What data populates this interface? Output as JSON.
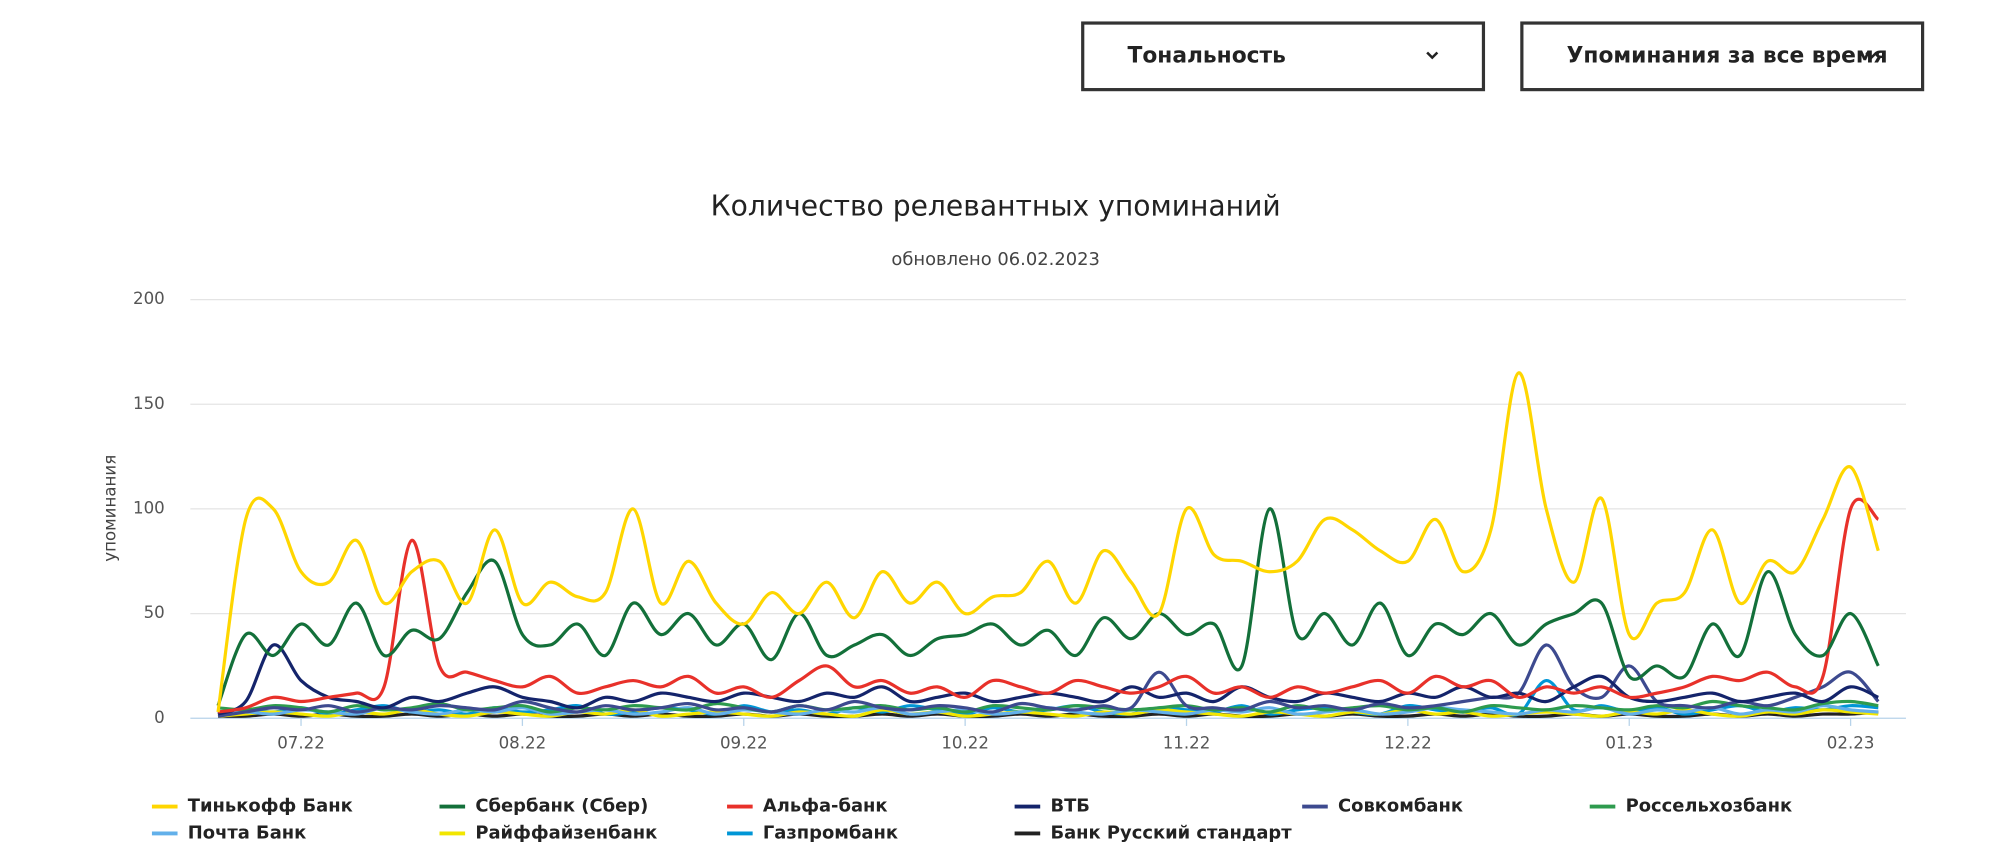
{
  "controls": {
    "tone": "Тональность",
    "period": "Упоминания за все время"
  },
  "chart_data": {
    "type": "line",
    "title": "Количество релевантных упоминаний",
    "subtitle": "обновлено 06.02.2023",
    "y_label": "упоминания",
    "xlim": [
      6.5,
      14.25
    ],
    "ylim": [
      0,
      200
    ],
    "yticks": [
      0,
      50,
      100,
      150,
      200
    ],
    "grid": true,
    "xticks": [
      {
        "value": 7,
        "label": "07.22"
      },
      {
        "value": 8,
        "label": "08.22"
      },
      {
        "value": 9,
        "label": "09.22"
      },
      {
        "value": 10,
        "label": "10.22"
      },
      {
        "value": 11,
        "label": "11.22"
      },
      {
        "value": 12,
        "label": "12.22"
      },
      {
        "value": 13,
        "label": "01.23"
      },
      {
        "value": 14,
        "label": "02.23"
      }
    ],
    "x": [
      6.625,
      6.75,
      6.875,
      7,
      7.125,
      7.25,
      7.375,
      7.5,
      7.625,
      7.75,
      7.875,
      8,
      8.125,
      8.25,
      8.375,
      8.5,
      8.625,
      8.75,
      8.875,
      9,
      9.125,
      9.25,
      9.375,
      9.5,
      9.625,
      9.75,
      9.875,
      10,
      10.125,
      10.25,
      10.375,
      10.5,
      10.625,
      10.75,
      10.875,
      11,
      11.125,
      11.25,
      11.375,
      11.5,
      11.625,
      11.75,
      11.875,
      12,
      12.125,
      12.25,
      12.375,
      12.5,
      12.625,
      12.75,
      12.875,
      13,
      13.125,
      13.25,
      13.375,
      13.5,
      13.625,
      13.75,
      13.875,
      14,
      14.125
    ],
    "series": [
      {
        "name": "Тинькофф Банк",
        "color": "#ffd600",
        "values": [
          3,
          95,
          100,
          70,
          65,
          85,
          55,
          70,
          75,
          55,
          90,
          55,
          65,
          58,
          60,
          100,
          55,
          75,
          55,
          45,
          60,
          50,
          65,
          48,
          70,
          55,
          65,
          50,
          58,
          60,
          75,
          55,
          80,
          65,
          50,
          100,
          78,
          75,
          70,
          75,
          95,
          90,
          80,
          75,
          95,
          70,
          90,
          165,
          100,
          65,
          105,
          40,
          55,
          60,
          90,
          55,
          75,
          70,
          95,
          120,
          80
        ]
      },
      {
        "name": "Сбербанк (Сбер)",
        "color": "#13703a",
        "values": [
          6,
          40,
          30,
          45,
          35,
          55,
          30,
          42,
          38,
          60,
          75,
          40,
          35,
          45,
          30,
          55,
          40,
          50,
          35,
          45,
          28,
          50,
          30,
          35,
          40,
          30,
          38,
          40,
          45,
          35,
          42,
          30,
          48,
          38,
          50,
          40,
          45,
          25,
          100,
          40,
          50,
          35,
          55,
          30,
          45,
          40,
          50,
          35,
          45,
          50,
          55,
          20,
          25,
          20,
          45,
          30,
          70,
          40,
          30,
          50,
          25
        ]
      },
      {
        "name": "Альфа-банк",
        "color": "#e8312a",
        "values": [
          3,
          5,
          10,
          8,
          10,
          12,
          15,
          85,
          25,
          22,
          18,
          15,
          20,
          12,
          15,
          18,
          15,
          20,
          12,
          15,
          10,
          18,
          25,
          15,
          18,
          12,
          15,
          10,
          18,
          15,
          12,
          18,
          15,
          12,
          15,
          20,
          12,
          15,
          10,
          15,
          12,
          15,
          18,
          12,
          20,
          15,
          18,
          10,
          15,
          12,
          15,
          10,
          12,
          15,
          20,
          18,
          22,
          15,
          20,
          100,
          95
        ]
      },
      {
        "name": "ВТБ",
        "color": "#14246b",
        "values": [
          2,
          8,
          35,
          18,
          10,
          8,
          5,
          10,
          8,
          12,
          15,
          10,
          8,
          5,
          10,
          8,
          12,
          10,
          8,
          12,
          10,
          8,
          12,
          10,
          15,
          8,
          10,
          12,
          8,
          10,
          12,
          10,
          8,
          15,
          10,
          12,
          8,
          15,
          10,
          8,
          12,
          10,
          8,
          12,
          10,
          15,
          10,
          12,
          8,
          15,
          20,
          10,
          8,
          10,
          12,
          8,
          10,
          12,
          8,
          15,
          10
        ]
      },
      {
        "name": "Совкомбанк",
        "color": "#3d4a8f",
        "values": [
          1,
          3,
          5,
          4,
          6,
          3,
          5,
          4,
          6,
          5,
          4,
          8,
          5,
          3,
          6,
          4,
          5,
          7,
          4,
          5,
          3,
          6,
          4,
          8,
          5,
          4,
          6,
          5,
          3,
          7,
          5,
          4,
          6,
          5,
          22,
          6,
          5,
          4,
          8,
          5,
          6,
          4,
          7,
          5,
          6,
          8,
          10,
          12,
          35,
          15,
          10,
          25,
          8,
          6,
          5,
          8,
          6,
          10,
          15,
          22,
          8
        ]
      },
      {
        "name": "Россельхозбанк",
        "color": "#2e9b4e",
        "values": [
          5,
          4,
          6,
          5,
          3,
          6,
          4,
          5,
          7,
          4,
          5,
          6,
          3,
          5,
          4,
          6,
          5,
          4,
          7,
          5,
          3,
          6,
          4,
          5,
          6,
          4,
          5,
          3,
          6,
          5,
          4,
          6,
          5,
          4,
          5,
          6,
          4,
          5,
          3,
          6,
          4,
          5,
          6,
          4,
          5,
          3,
          6,
          5,
          4,
          6,
          5,
          4,
          6,
          5,
          8,
          6,
          5,
          4,
          7,
          8,
          6
        ]
      },
      {
        "name": "Почта Банк",
        "color": "#62b0ea",
        "values": [
          2,
          3,
          2,
          4,
          3,
          2,
          5,
          3,
          2,
          4,
          3,
          5,
          2,
          3,
          4,
          2,
          3,
          5,
          2,
          4,
          3,
          2,
          4,
          3,
          5,
          2,
          3,
          4,
          2,
          3,
          5,
          3,
          2,
          4,
          3,
          2,
          4,
          3,
          5,
          2,
          3,
          4,
          2,
          3,
          5,
          4,
          3,
          2,
          4,
          3,
          5,
          2,
          4,
          3,
          5,
          2,
          4,
          3,
          6,
          4,
          3
        ]
      },
      {
        "name": "Райффайзенбанк",
        "color": "#f2e600",
        "values": [
          1,
          2,
          3,
          2,
          1,
          3,
          2,
          4,
          2,
          1,
          3,
          2,
          1,
          3,
          2,
          4,
          1,
          2,
          3,
          2,
          1,
          3,
          2,
          1,
          4,
          2,
          3,
          1,
          2,
          3,
          2,
          1,
          3,
          2,
          4,
          3,
          2,
          1,
          3,
          2,
          1,
          3,
          2,
          4,
          2,
          3,
          1,
          2,
          3,
          2,
          1,
          3,
          2,
          4,
          2,
          1,
          3,
          2,
          4,
          3,
          2
        ]
      },
      {
        "name": "Газпромбанк",
        "color": "#0096d6",
        "values": [
          2,
          4,
          3,
          5,
          2,
          4,
          6,
          3,
          4,
          2,
          5,
          3,
          4,
          6,
          2,
          3,
          5,
          4,
          2,
          6,
          3,
          4,
          2,
          5,
          3,
          6,
          4,
          2,
          5,
          3,
          4,
          6,
          3,
          2,
          5,
          4,
          3,
          6,
          2,
          4,
          5,
          3,
          2,
          6,
          4,
          3,
          5,
          2,
          18,
          4,
          6,
          3,
          5,
          2,
          4,
          6,
          3,
          5,
          4,
          6,
          5
        ]
      },
      {
        "name": "Банк Русский стандарт",
        "color": "#222222",
        "values": [
          1,
          1,
          2,
          1,
          2,
          1,
          1,
          2,
          1,
          2,
          1,
          2,
          1,
          1,
          2,
          1,
          2,
          1,
          1,
          2,
          1,
          2,
          1,
          1,
          2,
          1,
          2,
          1,
          1,
          2,
          1,
          2,
          1,
          1,
          2,
          1,
          2,
          1,
          1,
          2,
          1,
          2,
          1,
          1,
          2,
          1,
          2,
          1,
          1,
          2,
          1,
          2,
          1,
          1,
          2,
          1,
          2,
          1,
          2,
          2,
          3
        ]
      }
    ]
  }
}
